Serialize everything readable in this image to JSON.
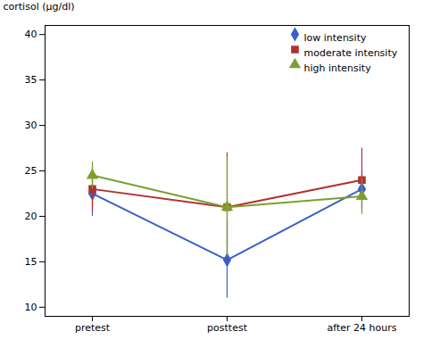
{
  "chart_data": {
    "type": "line",
    "categories": [
      "pretest",
      "posttest",
      "after 24 hours"
    ],
    "series": [
      {
        "name": "low intensity",
        "color": "#3A5FCD",
        "marker": "diamond",
        "values": [
          22.5,
          15.2,
          23.0
        ],
        "yerr": [
          2.5,
          4.2,
          2.0
        ]
      },
      {
        "name": "moderate intensity",
        "color": "#B03030",
        "marker": "square",
        "values": [
          23.0,
          21.0,
          24.0
        ],
        "yerr": [
          2.5,
          6.0,
          3.5
        ]
      },
      {
        "name": "high intensity",
        "color": "#7BA030",
        "marker": "triangle",
        "values": [
          24.5,
          21.0,
          22.2
        ],
        "yerr": [
          1.5,
          5.5,
          2.0
        ]
      }
    ],
    "ylabel": "cortisol (µg/dl)",
    "ylim": [
      9,
      41
    ],
    "yticks": [
      10,
      15,
      20,
      25,
      30,
      35,
      40
    ],
    "grid": false,
    "legend": "upper right"
  }
}
